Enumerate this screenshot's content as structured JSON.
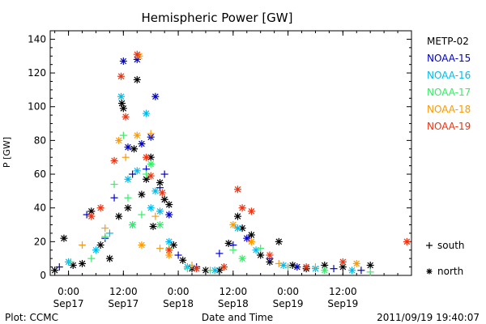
{
  "chart_data": {
    "type": "scatter",
    "title": "Hemispheric Power [GW]",
    "xlabel": "Date and Time",
    "ylabel": "P [GW]",
    "ylim": [
      0,
      145
    ],
    "yticks": [
      0,
      20,
      40,
      60,
      80,
      100,
      120,
      140
    ],
    "xlim": [
      "2011-09-16T20:00",
      "2011-09-20T03:00"
    ],
    "xticks": [
      {
        "t": "2011-09-17T00:00",
        "line1": "0:00",
        "line2": "Sep17"
      },
      {
        "t": "2011-09-17T12:00",
        "line1": "12:00",
        "line2": "Sep17"
      },
      {
        "t": "2011-09-18T00:00",
        "line1": "0:00",
        "line2": "Sep18"
      },
      {
        "t": "2011-09-18T12:00",
        "line1": "12:00",
        "line2": "Sep18"
      },
      {
        "t": "2011-09-19T00:00",
        "line1": "0:00",
        "line2": "Sep19"
      },
      {
        "t": "2011-09-19T12:00",
        "line1": "12:00",
        "line2": "Sep19"
      }
    ],
    "grid": false,
    "legend_position": "right",
    "series": [
      {
        "name": "METP-02",
        "color": "#000000",
        "points": [
          [
            "2011-09-16T21:00",
            3,
            "north"
          ],
          [
            "2011-09-16T23:00",
            22,
            "north"
          ],
          [
            "2011-09-17T01:00",
            6,
            "north"
          ],
          [
            "2011-09-17T03:00",
            7,
            "north"
          ],
          [
            "2011-09-17T05:00",
            38,
            "north"
          ],
          [
            "2011-09-17T07:00",
            18,
            "north"
          ],
          [
            "2011-09-17T09:00",
            10,
            "north"
          ],
          [
            "2011-09-17T11:00",
            35,
            "north"
          ],
          [
            "2011-09-17T11:40",
            102,
            "north"
          ],
          [
            "2011-09-17T12:00",
            99,
            "north"
          ],
          [
            "2011-09-17T13:00",
            40,
            "north"
          ],
          [
            "2011-09-17T14:20",
            75,
            "north"
          ],
          [
            "2011-09-17T15:00",
            116,
            "north"
          ],
          [
            "2011-09-17T16:00",
            48,
            "north"
          ],
          [
            "2011-09-17T17:00",
            57,
            "north"
          ],
          [
            "2011-09-17T18:00",
            70,
            "north"
          ],
          [
            "2011-09-17T18:30",
            29,
            "north"
          ],
          [
            "2011-09-17T20:00",
            55,
            "north"
          ],
          [
            "2011-09-17T21:00",
            45,
            "north"
          ],
          [
            "2011-09-17T22:00",
            42,
            "north"
          ],
          [
            "2011-09-17T23:00",
            18,
            "north"
          ],
          [
            "2011-09-18T01:00",
            9,
            "north"
          ],
          [
            "2011-09-18T03:00",
            4,
            "north"
          ],
          [
            "2011-09-18T06:00",
            3,
            "north"
          ],
          [
            "2011-09-18T09:00",
            3,
            "north"
          ],
          [
            "2011-09-18T11:00",
            19,
            "north"
          ],
          [
            "2011-09-18T13:00",
            35,
            "north"
          ],
          [
            "2011-09-18T14:00",
            28,
            "north"
          ],
          [
            "2011-09-18T16:00",
            24,
            "north"
          ],
          [
            "2011-09-18T18:00",
            12,
            "north"
          ],
          [
            "2011-09-18T20:00",
            8,
            "north"
          ],
          [
            "2011-09-18T22:00",
            20,
            "north"
          ],
          [
            "2011-09-19T01:00",
            6,
            "north"
          ],
          [
            "2011-09-19T04:00",
            4,
            "north"
          ],
          [
            "2011-09-19T08:00",
            6,
            "north"
          ],
          [
            "2011-09-19T12:00",
            5,
            "north"
          ],
          [
            "2011-09-19T18:00",
            6,
            "north"
          ]
        ]
      },
      {
        "name": "NOAA-15",
        "color": "#0000cc",
        "points": [
          [
            "2011-09-16T22:00",
            5,
            "south"
          ],
          [
            "2011-09-17T04:00",
            36,
            "south"
          ],
          [
            "2011-09-17T08:00",
            22,
            "south"
          ],
          [
            "2011-09-17T10:00",
            46,
            "south"
          ],
          [
            "2011-09-17T12:00",
            127,
            "north"
          ],
          [
            "2011-09-17T13:00",
            76,
            "north"
          ],
          [
            "2011-09-17T14:00",
            60,
            "south"
          ],
          [
            "2011-09-17T15:00",
            128,
            "north"
          ],
          [
            "2011-09-17T16:00",
            78,
            "north"
          ],
          [
            "2011-09-17T17:00",
            63,
            "south"
          ],
          [
            "2011-09-17T18:00",
            82,
            "north"
          ],
          [
            "2011-09-17T19:00",
            106,
            "north"
          ],
          [
            "2011-09-17T20:00",
            52,
            "south"
          ],
          [
            "2011-09-17T21:00",
            60,
            "south"
          ],
          [
            "2011-09-17T22:00",
            36,
            "north"
          ],
          [
            "2011-09-18T00:00",
            12,
            "south"
          ],
          [
            "2011-09-18T04:00",
            5,
            "south"
          ],
          [
            "2011-09-18T09:00",
            13,
            "south"
          ],
          [
            "2011-09-18T12:00",
            18,
            "south"
          ],
          [
            "2011-09-18T15:00",
            22,
            "north"
          ],
          [
            "2011-09-18T20:00",
            10,
            "south"
          ],
          [
            "2011-09-19T02:00",
            5,
            "north"
          ],
          [
            "2011-09-19T10:00",
            4,
            "south"
          ],
          [
            "2011-09-19T16:00",
            3,
            "south"
          ]
        ]
      },
      {
        "name": "NOAA-16",
        "color": "#00bbee",
        "points": [
          [
            "2011-09-17T00:00",
            8,
            "north"
          ],
          [
            "2011-09-17T06:00",
            15,
            "north"
          ],
          [
            "2011-09-17T09:00",
            25,
            "south"
          ],
          [
            "2011-09-17T11:30",
            106,
            "north"
          ],
          [
            "2011-09-17T13:00",
            57,
            "north"
          ],
          [
            "2011-09-17T14:00",
            30,
            "north"
          ],
          [
            "2011-09-17T15:00",
            62,
            "north"
          ],
          [
            "2011-09-17T17:00",
            96,
            "north"
          ],
          [
            "2011-09-17T18:00",
            40,
            "north"
          ],
          [
            "2011-09-17T19:00",
            50,
            "north"
          ],
          [
            "2011-09-17T20:00",
            38,
            "north"
          ],
          [
            "2011-09-17T22:00",
            20,
            "north"
          ],
          [
            "2011-09-18T02:00",
            5,
            "north"
          ],
          [
            "2011-09-18T08:00",
            3,
            "north"
          ],
          [
            "2011-09-18T13:00",
            28,
            "north"
          ],
          [
            "2011-09-18T17:00",
            15,
            "north"
          ],
          [
            "2011-09-18T23:00",
            6,
            "north"
          ],
          [
            "2011-09-19T06:00",
            4,
            "north"
          ],
          [
            "2011-09-19T14:00",
            3,
            "north"
          ]
        ]
      },
      {
        "name": "NOAA-17",
        "color": "#33ee66",
        "points": [
          [
            "2011-09-17T00:30",
            8,
            "south"
          ],
          [
            "2011-09-17T05:00",
            10,
            "south"
          ],
          [
            "2011-09-17T08:00",
            23,
            "south"
          ],
          [
            "2011-09-17T10:00",
            54,
            "south"
          ],
          [
            "2011-09-17T12:00",
            83,
            "south"
          ],
          [
            "2011-09-17T13:00",
            46,
            "south"
          ],
          [
            "2011-09-17T14:00",
            30,
            "north"
          ],
          [
            "2011-09-17T16:00",
            36,
            "south"
          ],
          [
            "2011-09-17T17:00",
            60,
            "south"
          ],
          [
            "2011-09-17T18:00",
            66,
            "north"
          ],
          [
            "2011-09-17T20:00",
            30,
            "north"
          ],
          [
            "2011-09-17T22:00",
            16,
            "south"
          ],
          [
            "2011-09-18T02:00",
            4,
            "south"
          ],
          [
            "2011-09-18T07:00",
            3,
            "south"
          ],
          [
            "2011-09-18T12:00",
            15,
            "south"
          ],
          [
            "2011-09-18T14:00",
            10,
            "north"
          ],
          [
            "2011-09-18T18:00",
            16,
            "south"
          ],
          [
            "2011-09-19T00:00",
            5,
            "south"
          ],
          [
            "2011-09-19T08:00",
            3,
            "north"
          ],
          [
            "2011-09-19T18:00",
            2,
            "south"
          ]
        ]
      },
      {
        "name": "NOAA-18",
        "color": "#ff9900",
        "points": [
          [
            "2011-09-17T03:00",
            18,
            "south"
          ],
          [
            "2011-09-17T08:00",
            28,
            "south"
          ],
          [
            "2011-09-17T11:00",
            80,
            "north"
          ],
          [
            "2011-09-17T12:30",
            70,
            "south"
          ],
          [
            "2011-09-17T15:00",
            83,
            "north"
          ],
          [
            "2011-09-17T15:30",
            130,
            "north"
          ],
          [
            "2011-09-17T16:00",
            18,
            "north"
          ],
          [
            "2011-09-17T18:00",
            84,
            "south"
          ],
          [
            "2011-09-17T19:00",
            35,
            "south"
          ],
          [
            "2011-09-17T20:00",
            16,
            "south"
          ],
          [
            "2011-09-17T22:00",
            12,
            "north"
          ],
          [
            "2011-09-18T03:00",
            6,
            "south"
          ],
          [
            "2011-09-18T10:00",
            5,
            "south"
          ],
          [
            "2011-09-18T12:00",
            30,
            "north"
          ],
          [
            "2011-09-18T16:00",
            20,
            "north"
          ],
          [
            "2011-09-18T22:00",
            7,
            "south"
          ],
          [
            "2011-09-19T06:00",
            5,
            "south"
          ],
          [
            "2011-09-19T15:00",
            7,
            "north"
          ]
        ]
      },
      {
        "name": "NOAA-19",
        "color": "#ee3311",
        "points": [
          [
            "2011-09-17T05:00",
            35,
            "north"
          ],
          [
            "2011-09-17T07:00",
            40,
            "north"
          ],
          [
            "2011-09-17T10:00",
            68,
            "north"
          ],
          [
            "2011-09-17T11:30",
            118,
            "north"
          ],
          [
            "2011-09-17T12:30",
            94,
            "north"
          ],
          [
            "2011-09-17T15:00",
            131,
            "north"
          ],
          [
            "2011-09-17T17:00",
            70,
            "north"
          ],
          [
            "2011-09-17T18:00",
            59,
            "north"
          ],
          [
            "2011-09-17T20:30",
            49,
            "north"
          ],
          [
            "2011-09-17T22:00",
            15,
            "north"
          ],
          [
            "2011-09-18T04:00",
            4,
            "north"
          ],
          [
            "2011-09-18T10:00",
            5,
            "north"
          ],
          [
            "2011-09-18T13:00",
            51,
            "north"
          ],
          [
            "2011-09-18T14:00",
            40,
            "north"
          ],
          [
            "2011-09-18T16:00",
            38,
            "north"
          ],
          [
            "2011-09-18T20:00",
            12,
            "north"
          ],
          [
            "2011-09-19T04:00",
            5,
            "north"
          ],
          [
            "2011-09-19T12:00",
            8,
            "north"
          ],
          [
            "2011-09-20T02:00",
            20,
            "north"
          ]
        ]
      }
    ],
    "marker_legend": [
      {
        "symbol": "+",
        "label": "south"
      },
      {
        "symbol": "*",
        "label": "north"
      }
    ]
  },
  "footer": {
    "left": "Plot: CCMC",
    "right": "2011/09/19 19:40:07"
  }
}
